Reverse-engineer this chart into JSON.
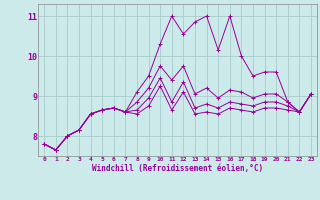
{
  "xlabel": "Windchill (Refroidissement éolien,°C)",
  "bg_color": "#cceaea",
  "line_color": "#990099",
  "grid_color": "#aacccc",
  "xlim": [
    -0.5,
    23.5
  ],
  "ylim": [
    7.5,
    11.3
  ],
  "yticks": [
    8,
    9,
    10,
    11
  ],
  "xticks": [
    0,
    1,
    2,
    3,
    4,
    5,
    6,
    7,
    8,
    9,
    10,
    11,
    12,
    13,
    14,
    15,
    16,
    17,
    18,
    19,
    20,
    21,
    22,
    23
  ],
  "series": [
    [
      7.8,
      7.65,
      8.0,
      8.15,
      8.55,
      8.65,
      8.7,
      8.6,
      9.1,
      9.5,
      10.3,
      11.0,
      10.55,
      10.85,
      11.0,
      10.15,
      11.0,
      10.0,
      9.5,
      9.6,
      9.6,
      8.85,
      8.6,
      9.05
    ],
    [
      7.8,
      7.65,
      8.0,
      8.15,
      8.55,
      8.65,
      8.7,
      8.6,
      8.85,
      9.2,
      9.75,
      9.4,
      9.75,
      9.05,
      9.2,
      8.95,
      9.15,
      9.1,
      8.95,
      9.05,
      9.05,
      8.85,
      8.6,
      9.05
    ],
    [
      7.8,
      7.65,
      8.0,
      8.15,
      8.55,
      8.65,
      8.7,
      8.6,
      8.65,
      8.95,
      9.45,
      8.85,
      9.35,
      8.7,
      8.8,
      8.7,
      8.85,
      8.8,
      8.75,
      8.85,
      8.85,
      8.75,
      8.6,
      9.05
    ],
    [
      7.8,
      7.65,
      8.0,
      8.15,
      8.55,
      8.65,
      8.7,
      8.6,
      8.55,
      8.75,
      9.25,
      8.65,
      9.1,
      8.55,
      8.6,
      8.55,
      8.7,
      8.65,
      8.6,
      8.7,
      8.7,
      8.65,
      8.6,
      9.05
    ]
  ],
  "marker": "+"
}
